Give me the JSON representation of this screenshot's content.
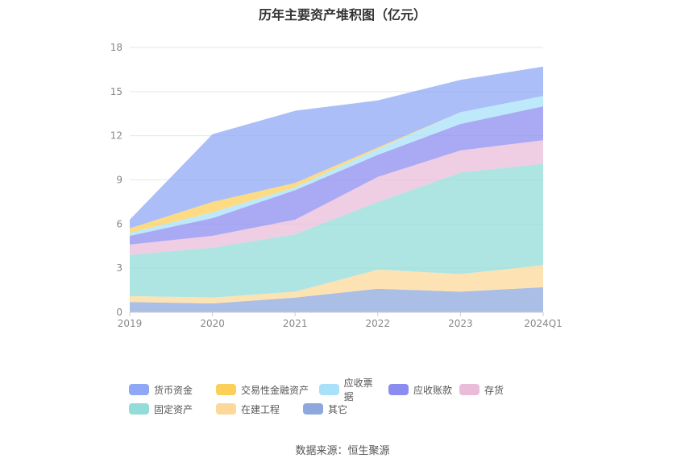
{
  "chart_data": {
    "type": "area",
    "title": "历年主要资产堆积图（亿元）",
    "categories": [
      "2019",
      "2020",
      "2021",
      "2022",
      "2023",
      "2024Q1"
    ],
    "ylim": [
      0,
      18
    ],
    "yticks": [
      "0",
      "3",
      "6",
      "9",
      "12",
      "15",
      "18"
    ],
    "stacked": true,
    "grid": true,
    "legend_position": "bottom",
    "series": [
      {
        "name": "其它",
        "color": "#8fa8dc",
        "values": [
          0.7,
          0.6,
          1.0,
          1.6,
          1.4,
          1.7
        ]
      },
      {
        "name": "在建工程",
        "color": "#fcd99a",
        "values": [
          0.4,
          0.4,
          0.4,
          1.3,
          1.2,
          1.5
        ]
      },
      {
        "name": "固定资产",
        "color": "#93dcd9",
        "values": [
          2.8,
          3.4,
          3.9,
          4.6,
          6.9,
          6.9
        ]
      },
      {
        "name": "存货",
        "color": "#e9bcd9",
        "values": [
          0.7,
          0.8,
          1.0,
          1.7,
          1.5,
          1.6
        ]
      },
      {
        "name": "应收账款",
        "color": "#8c8cf0",
        "values": [
          0.6,
          1.2,
          2.0,
          1.5,
          1.8,
          2.3
        ]
      },
      {
        "name": "应收票据",
        "color": "#a8e1f8",
        "values": [
          0.2,
          0.4,
          0.2,
          0.4,
          0.8,
          0.7
        ]
      },
      {
        "name": "交易性金融资产",
        "color": "#fbcf5a",
        "values": [
          0.3,
          0.7,
          0.3,
          0.1,
          0.0,
          0.0
        ]
      },
      {
        "name": "货币资金",
        "color": "#8fa8f5",
        "values": [
          0.6,
          4.6,
          4.9,
          3.2,
          2.2,
          2.0
        ]
      }
    ],
    "legend_order": [
      "货币资金",
      "交易性金融资产",
      "应收票据",
      "应收账款",
      "存货",
      "固定资产",
      "在建工程",
      "其它"
    ]
  },
  "source": "数据来源：恒生聚源"
}
